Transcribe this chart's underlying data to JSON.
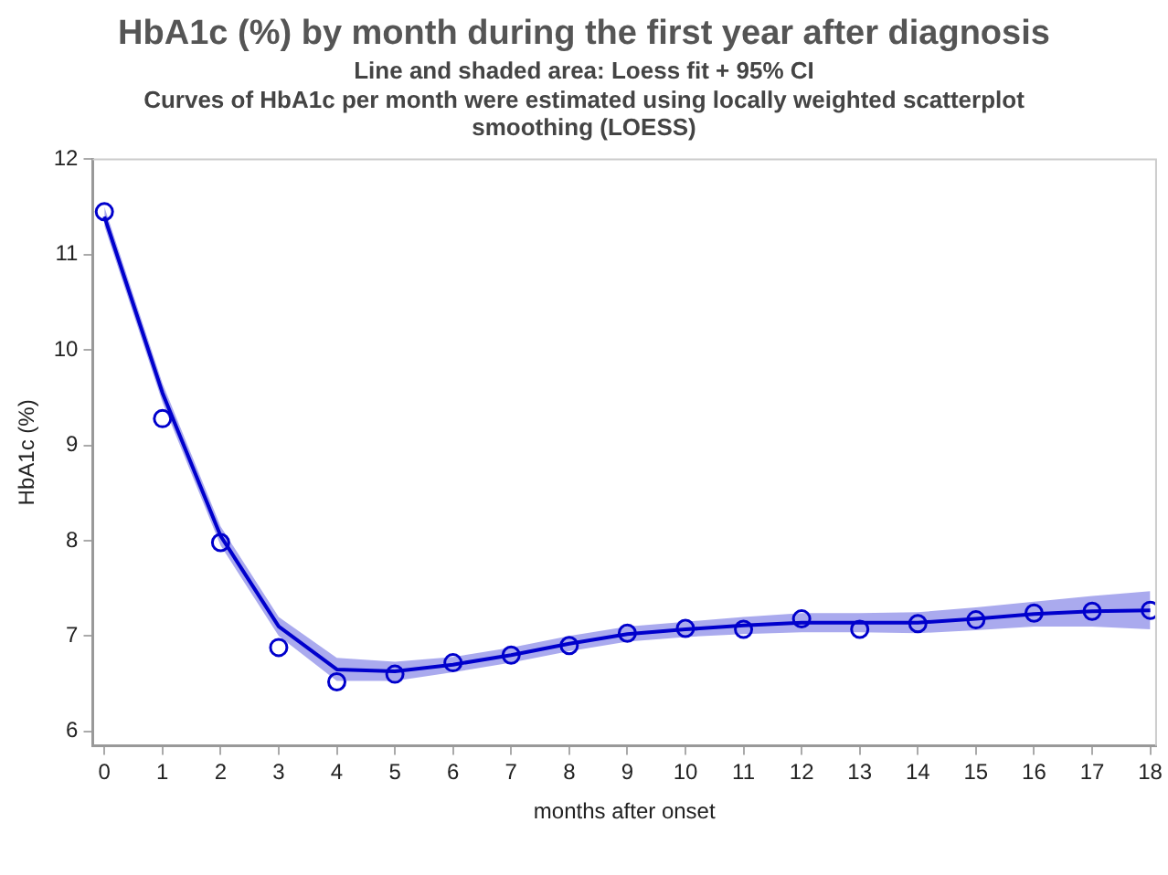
{
  "chart_data": {
    "type": "line",
    "title": "HbA1c (%) by month during the first year after diagnosis",
    "subtitle": "Line and shaded area: Loess fit + 95% CI",
    "annotations": [
      "Curves of HbA1c per month were estimated using locally weighted scatterplot smoothing (LOESS)"
    ],
    "xlabel": "months after onset",
    "ylabel": "HbA1c (%)",
    "x": [
      0,
      1,
      2,
      3,
      4,
      5,
      6,
      7,
      8,
      9,
      10,
      11,
      12,
      13,
      14,
      15,
      16,
      17,
      18
    ],
    "series": [
      {
        "type": "line",
        "color": "#0000cc",
        "marker": "none",
        "values": [
          11.4,
          9.55,
          8.05,
          7.1,
          6.65,
          6.63,
          6.7,
          6.8,
          6.92,
          7.02,
          7.07,
          7.11,
          7.14,
          7.14,
          7.14,
          7.18,
          7.23,
          7.26,
          7.27
        ],
        "lower": [
          11.3,
          9.45,
          7.95,
          7.0,
          6.53,
          6.53,
          6.62,
          6.72,
          6.84,
          6.94,
          6.99,
          7.02,
          7.04,
          7.04,
          7.03,
          7.06,
          7.1,
          7.1,
          7.07
        ],
        "upper": [
          11.5,
          9.65,
          8.15,
          7.2,
          6.77,
          6.73,
          6.78,
          6.88,
          7.0,
          7.1,
          7.15,
          7.2,
          7.24,
          7.24,
          7.25,
          7.3,
          7.36,
          7.42,
          7.47
        ]
      },
      {
        "type": "scatter",
        "color": "#0000cc",
        "marker": "circle",
        "values": [
          11.45,
          9.28,
          7.98,
          6.88,
          6.52,
          6.6,
          6.72,
          6.8,
          6.9,
          7.03,
          7.08,
          7.07,
          7.18,
          7.07,
          7.13,
          7.17,
          7.24,
          7.26,
          7.27
        ]
      }
    ],
    "xlim": [
      -0.2,
      18.1
    ],
    "xticks": [
      0,
      1,
      2,
      3,
      4,
      5,
      6,
      7,
      8,
      9,
      10,
      11,
      12,
      13,
      14,
      15,
      16,
      17,
      18
    ],
    "ylim": [
      5.85,
      12
    ],
    "yticks": [
      6,
      7,
      8,
      9,
      10,
      11,
      12
    ],
    "grid": false,
    "legend": false
  }
}
